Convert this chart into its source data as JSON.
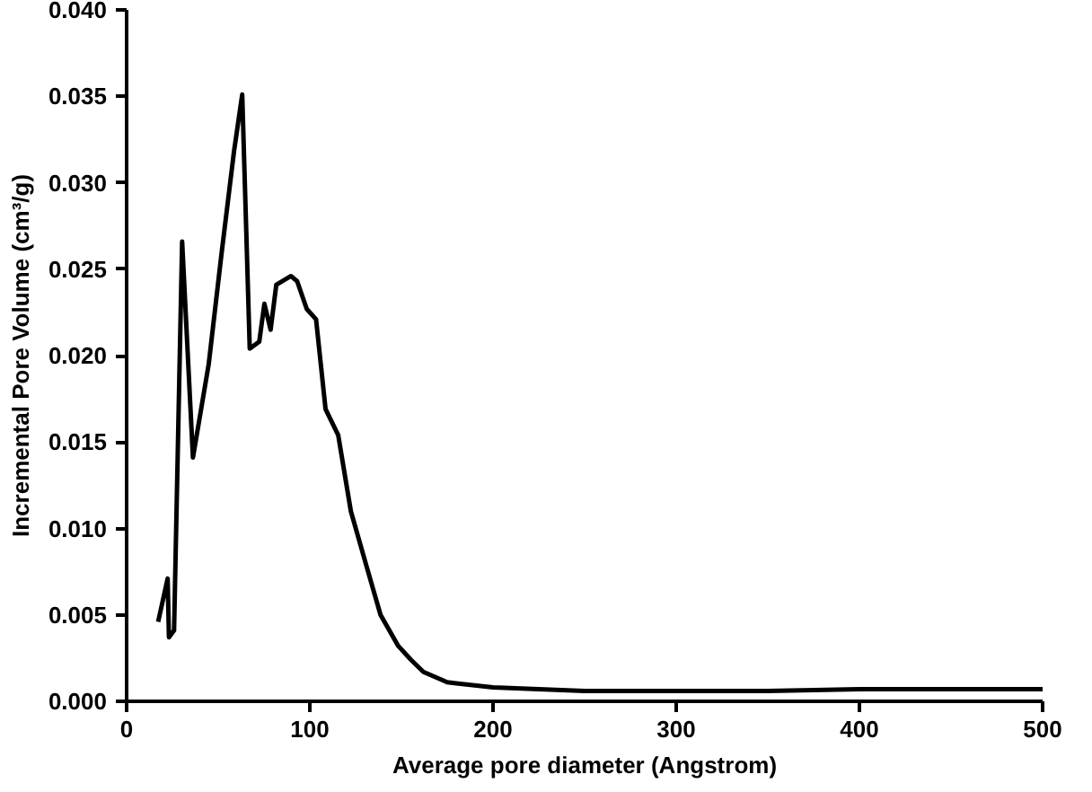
{
  "chart_data": {
    "type": "line",
    "xlabel": "Average pore diameter (Angstrom)",
    "ylabel": "Incremental Pore Volume (cm³/g)",
    "xlim": [
      0,
      500
    ],
    "ylim": [
      0,
      0.04
    ],
    "xticks": [
      0,
      100,
      200,
      300,
      400,
      500
    ],
    "yticks": [
      {
        "value": 0,
        "label": "0.000"
      },
      {
        "value": 0.005,
        "label": "0.005"
      },
      {
        "value": 0.01,
        "label": "0.010"
      },
      {
        "value": 0.015,
        "label": "0.015"
      },
      {
        "value": 0.02,
        "label": "0.020"
      },
      {
        "value": 0.025,
        "label": "0.025"
      },
      {
        "value": 0.03,
        "label": "0.030"
      },
      {
        "value": 0.035,
        "label": "0.035"
      },
      {
        "value": 0.04,
        "label": "0.040"
      }
    ],
    "series": [
      {
        "color": "#000000",
        "x": [
          17.2,
          22.4,
          23.1,
          25.9,
          30.3,
          36.2,
          44.8,
          51.7,
          58.6,
          63.1,
          67.2,
          72.4,
          75.2,
          78.6,
          81.7,
          89.7,
          93.1,
          98.3,
          103.4,
          108.6,
          115.5,
          122.4,
          131,
          138.6,
          148.3,
          155.2,
          162,
          175,
          200,
          250,
          270,
          300,
          350,
          400,
          450,
          500
        ],
        "values": [
          0.0046,
          0.0071,
          0.0037,
          0.0041,
          0.0266,
          0.0141,
          0.0195,
          0.0258,
          0.0318,
          0.0351,
          0.0204,
          0.0208,
          0.023,
          0.0215,
          0.0241,
          0.0246,
          0.0243,
          0.0227,
          0.0221,
          0.0169,
          0.0154,
          0.011,
          0.0078,
          0.005,
          0.0032,
          0.0024,
          0.0017,
          0.0011,
          0.0008,
          0.0006,
          0.0006,
          0.0006,
          0.0006,
          0.0007,
          0.0007,
          0.0007
        ]
      }
    ],
    "grid": false,
    "marker": "none",
    "line_style": "solid"
  }
}
